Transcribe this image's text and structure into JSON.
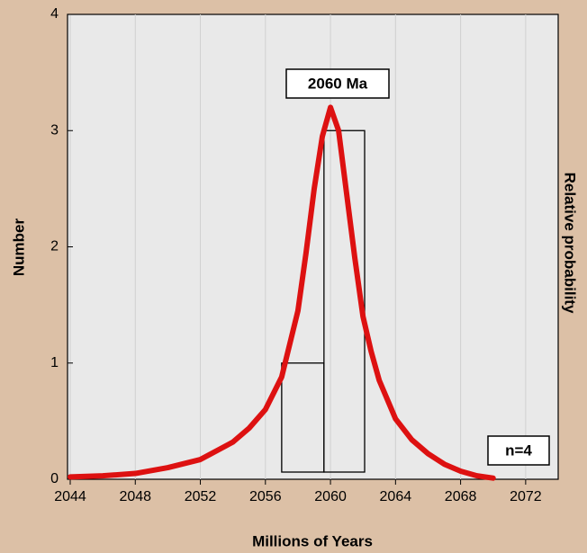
{
  "chart_data": {
    "type": "histogram",
    "xlabel": "Millions of Years",
    "ylabel": "Number",
    "y2label": "Relative probability",
    "bins": [
      2057,
      2059.6,
      2062.1
    ],
    "counts": [
      1,
      3
    ],
    "bar_color": "#000000",
    "curve": {
      "color": "#dd1111",
      "x": [
        2044,
        2046,
        2048,
        2050,
        2052,
        2054,
        2055,
        2056,
        2057,
        2058,
        2058.5,
        2059,
        2059.5,
        2060,
        2060.5,
        2061,
        2061.5,
        2062,
        2062.5,
        2063,
        2064,
        2065,
        2066,
        2067,
        2068,
        2069,
        2070
      ],
      "values": [
        0.02,
        0.03,
        0.05,
        0.1,
        0.17,
        0.32,
        0.44,
        0.6,
        0.88,
        1.45,
        1.95,
        2.5,
        2.95,
        3.2,
        3.0,
        2.45,
        1.9,
        1.4,
        1.1,
        0.85,
        0.52,
        0.34,
        0.22,
        0.13,
        0.07,
        0.03,
        0.01
      ]
    },
    "xlim": [
      2044,
      2074
    ],
    "xticks": [
      2044,
      2048,
      2052,
      2056,
      2060,
      2064,
      2068,
      2072
    ],
    "ylim": [
      0,
      4
    ],
    "yticks": [
      0,
      1,
      2,
      3,
      4
    ],
    "grid": true,
    "annotations": [
      "2060 Ma",
      "n=4"
    ]
  }
}
